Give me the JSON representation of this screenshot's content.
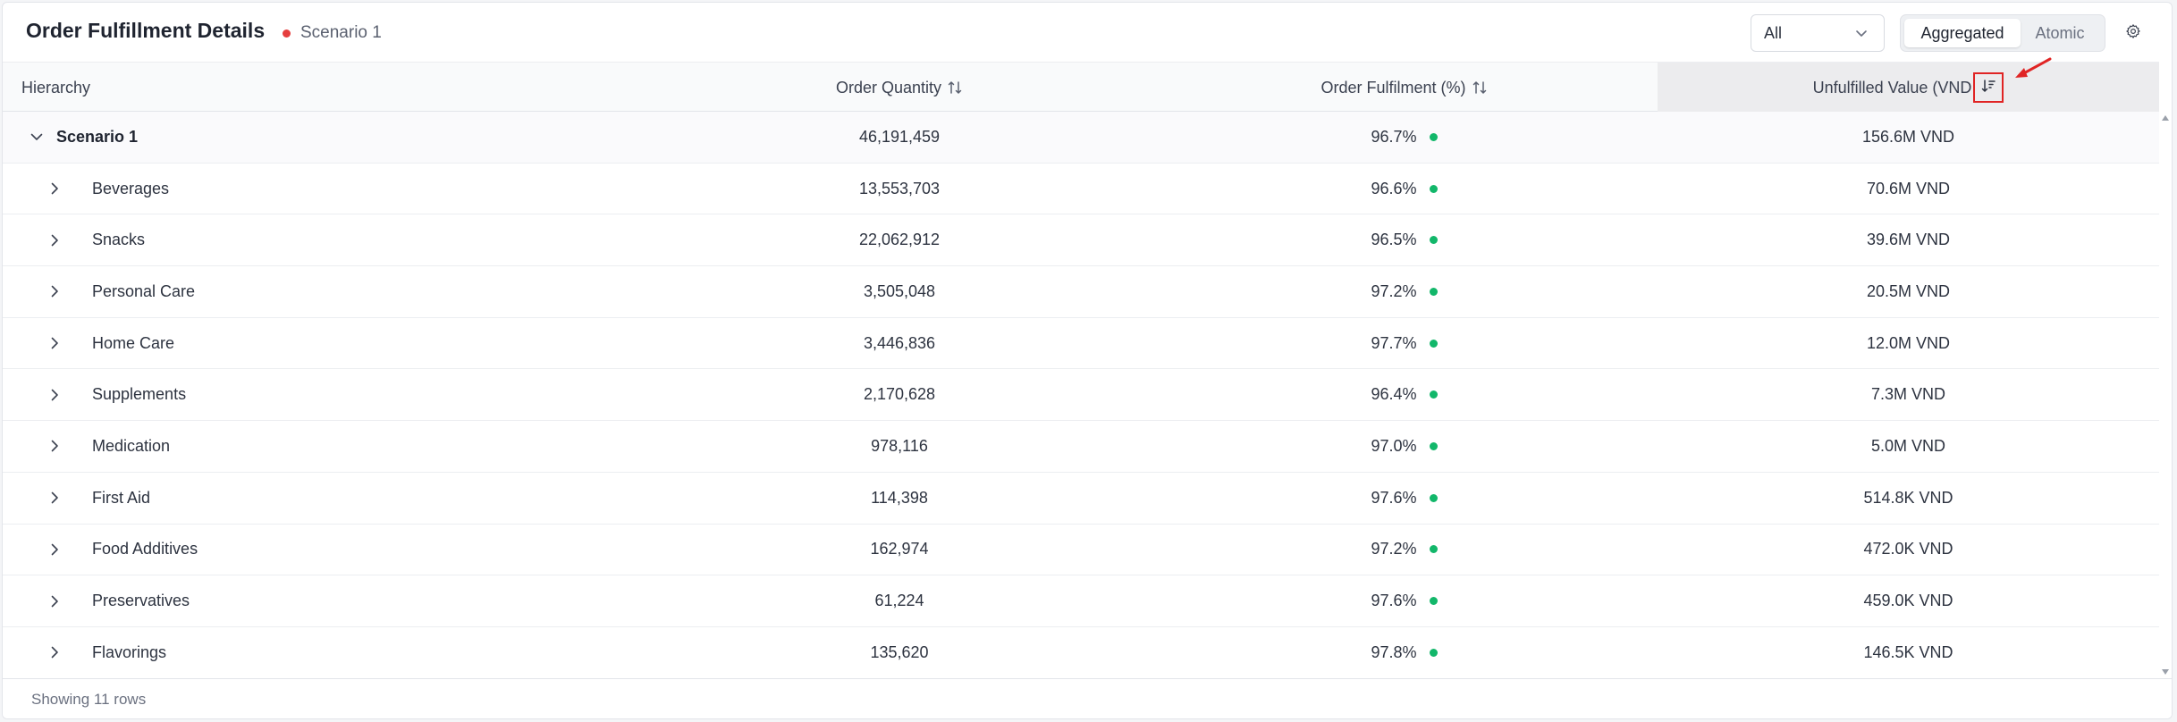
{
  "header": {
    "title": "Order Fulfillment Details",
    "scenario_label": "Scenario 1",
    "scenario_dot_color": "#e53e3e",
    "filter_select": {
      "value": "All",
      "icon": "chevron-down-icon"
    },
    "view_toggle": {
      "options": [
        "Aggregated",
        "Atomic"
      ],
      "selected": "Aggregated"
    },
    "settings_icon": "gear-icon"
  },
  "table": {
    "columns": {
      "hierarchy": "Hierarchy",
      "order_quantity": "Order Quantity",
      "order_fulfilment": "Order Fulfilment (%)",
      "unfulfilled_value": "Unfulfilled Value (VND"
    },
    "sort_icons": {
      "order_quantity": "sort-both-icon",
      "order_fulfilment": "sort-both-icon",
      "unfulfilled_value": "sort-descending-icon"
    },
    "status_color": "#12b76a",
    "top_row": {
      "label": "Scenario 1",
      "quantity": "46,191,459",
      "fulfilment": "96.7%",
      "value": "156.6M VND",
      "expanded": true
    },
    "rows": [
      {
        "label": "Beverages",
        "quantity": "13,553,703",
        "fulfilment": "96.6%",
        "value": "70.6M VND"
      },
      {
        "label": "Snacks",
        "quantity": "22,062,912",
        "fulfilment": "96.5%",
        "value": "39.6M VND"
      },
      {
        "label": "Personal Care",
        "quantity": "3,505,048",
        "fulfilment": "97.2%",
        "value": "20.5M VND"
      },
      {
        "label": "Home Care",
        "quantity": "3,446,836",
        "fulfilment": "97.7%",
        "value": "12.0M VND"
      },
      {
        "label": "Supplements",
        "quantity": "2,170,628",
        "fulfilment": "96.4%",
        "value": "7.3M VND"
      },
      {
        "label": "Medication",
        "quantity": "978,116",
        "fulfilment": "97.0%",
        "value": "5.0M VND"
      },
      {
        "label": "First Aid",
        "quantity": "114,398",
        "fulfilment": "97.6%",
        "value": "514.8K VND"
      },
      {
        "label": "Food Additives",
        "quantity": "162,974",
        "fulfilment": "97.2%",
        "value": "472.0K VND"
      },
      {
        "label": "Preservatives",
        "quantity": "61,224",
        "fulfilment": "97.6%",
        "value": "459.0K VND"
      },
      {
        "label": "Flavorings",
        "quantity": "135,620",
        "fulfilment": "97.8%",
        "value": "146.5K VND"
      }
    ]
  },
  "footer": {
    "text": "Showing 11 rows"
  },
  "annotation": {
    "highlight_color": "#e02424"
  }
}
